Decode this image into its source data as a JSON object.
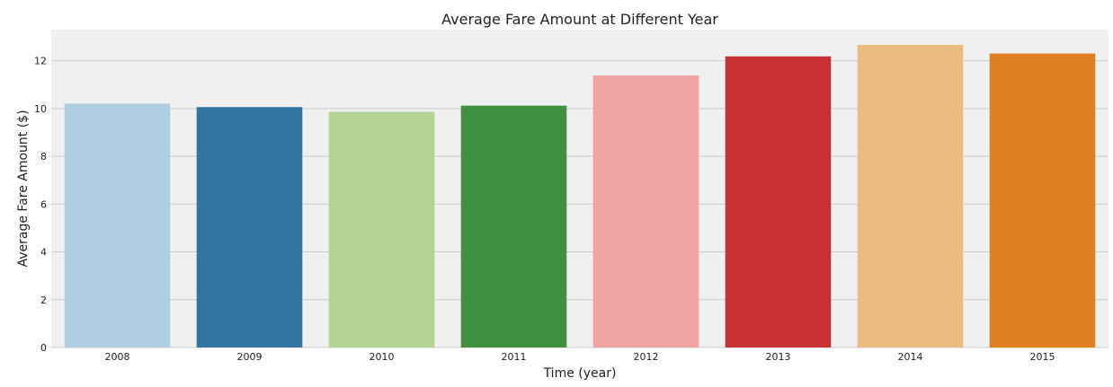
{
  "chart_data": {
    "type": "bar",
    "title": "Average Fare Amount at Different Year",
    "xlabel": "Time (year)",
    "ylabel": "Average Fare Amount ($)",
    "categories": [
      "2008",
      "2009",
      "2010",
      "2011",
      "2012",
      "2013",
      "2014",
      "2015"
    ],
    "values": [
      10.2,
      10.06,
      9.86,
      10.12,
      11.38,
      12.18,
      12.66,
      12.3
    ],
    "colors": [
      "#aecde1",
      "#3274a1",
      "#b4d493",
      "#3f903f",
      "#f0a4a3",
      "#c73034",
      "#ebbc80",
      "#e07f21"
    ],
    "ylim": [
      0,
      13.3
    ],
    "yticks": [
      0,
      2,
      4,
      6,
      8,
      10,
      12
    ],
    "grid": true,
    "legend": "none",
    "background_color": "#f0f0f0",
    "grid_color": "#cbcbcb"
  }
}
